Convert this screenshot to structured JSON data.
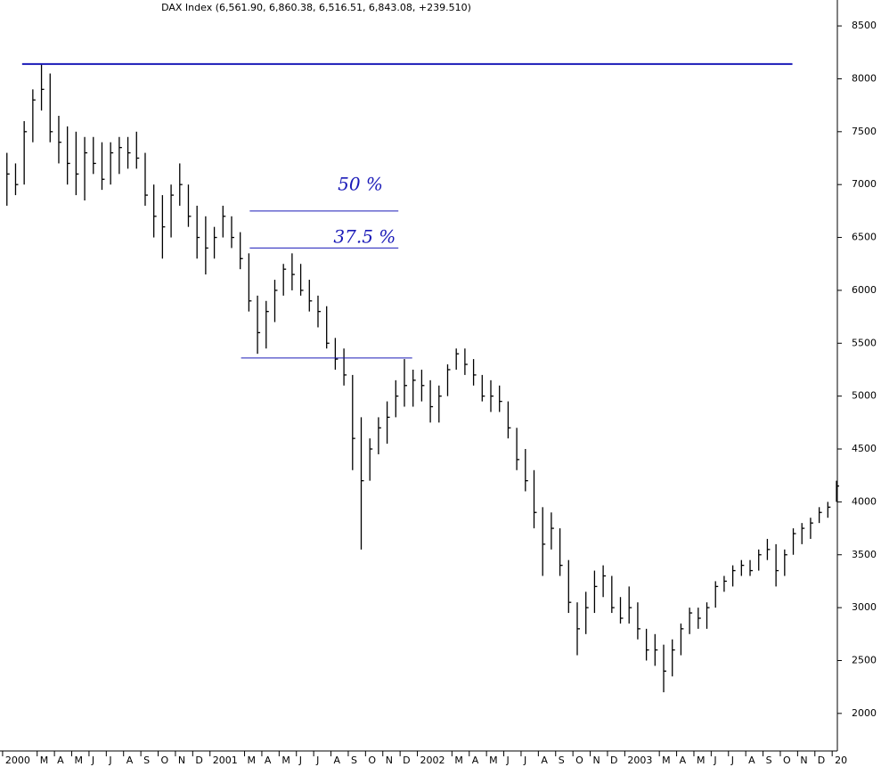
{
  "chart_data": {
    "type": "ohlc",
    "title": "DAX Index (6,561.90, 6,860.38, 6,516.51, 6,843.08, +239.510)",
    "color": "#000000",
    "x": [
      0.25,
      0.75,
      1.25,
      1.75,
      2.25,
      2.75,
      3.25,
      3.75,
      4.25,
      4.75,
      5.25,
      5.75,
      6.25,
      6.75,
      7.25,
      7.75,
      8.25,
      8.75,
      9.25,
      9.75,
      10.25,
      10.75,
      11.25,
      11.75,
      12.25,
      12.75,
      13.25,
      13.75,
      14.25,
      14.75,
      15.25,
      15.75,
      16.25,
      16.75,
      17.25,
      17.75,
      18.25,
      18.75,
      19.25,
      19.75,
      20.25,
      20.75,
      21.25,
      21.75,
      22.25,
      22.75,
      23.25,
      23.75,
      24.25,
      24.75,
      25.25,
      25.75,
      26.25,
      26.75,
      27.25,
      27.75,
      28.25,
      28.75,
      29.25,
      29.75,
      30.25,
      30.75,
      31.25,
      31.75,
      32.25,
      32.75,
      33.25,
      33.75,
      34.25,
      34.75,
      35.25,
      35.75,
      36.25,
      36.75,
      37.25,
      37.75,
      38.25,
      38.75,
      39.25,
      39.75,
      40.25,
      40.75,
      41.25,
      41.75,
      42.25,
      42.75,
      43.25,
      43.75,
      44.25,
      44.75,
      45.25,
      45.75,
      46.25,
      46.75,
      47.25,
      47.75,
      48.25
    ],
    "high": [
      7300,
      7200,
      7600,
      7900,
      8140,
      8050,
      7650,
      7550,
      7500,
      7450,
      7450,
      7400,
      7400,
      7450,
      7450,
      7500,
      7300,
      7000,
      6900,
      7000,
      7200,
      7000,
      6800,
      6700,
      6600,
      6800,
      6700,
      6550,
      6350,
      5950,
      5900,
      6100,
      6250,
      6350,
      6250,
      6100,
      5950,
      5850,
      5550,
      5450,
      5200,
      4800,
      4600,
      4800,
      4950,
      5150,
      5350,
      5250,
      5250,
      5150,
      5100,
      5300,
      5450,
      5450,
      5350,
      5200,
      5150,
      5100,
      4950,
      4700,
      4500,
      4300,
      3950,
      3900,
      3750,
      3450,
      3050,
      3150,
      3350,
      3400,
      3300,
      3100,
      3200,
      3050,
      2800,
      2750,
      2650,
      2700,
      2850,
      3000,
      3000,
      3050,
      3250,
      3300,
      3400,
      3450,
      3450,
      3550,
      3650,
      3600,
      3550,
      3750,
      3800,
      3850,
      3950,
      4000,
      4200
    ],
    "low": [
      6800,
      6900,
      7000,
      7400,
      7700,
      7400,
      7200,
      7000,
      6900,
      6850,
      7100,
      6950,
      7000,
      7100,
      7150,
      7150,
      6800,
      6500,
      6300,
      6500,
      6800,
      6600,
      6300,
      6150,
      6300,
      6500,
      6400,
      6200,
      5800,
      5400,
      5450,
      5700,
      5950,
      6000,
      5950,
      5800,
      5650,
      5450,
      5250,
      5100,
      4300,
      3550,
      4200,
      4450,
      4550,
      4800,
      4900,
      4900,
      4950,
      4750,
      4750,
      5000,
      5250,
      5200,
      5100,
      4950,
      4850,
      4850,
      4600,
      4300,
      4100,
      3750,
      3300,
      3550,
      3300,
      2950,
      2550,
      2750,
      2950,
      3100,
      2950,
      2850,
      2850,
      2700,
      2500,
      2450,
      2200,
      2350,
      2550,
      2750,
      2800,
      2800,
      3000,
      3150,
      3200,
      3300,
      3300,
      3350,
      3450,
      3200,
      3300,
      3500,
      3600,
      3650,
      3800,
      3850,
      4000
    ],
    "close": [
      7100,
      7000,
      7500,
      7800,
      7900,
      7500,
      7400,
      7200,
      7100,
      7300,
      7200,
      7050,
      7300,
      7350,
      7300,
      7250,
      6900,
      6700,
      6600,
      6900,
      7000,
      6700,
      6500,
      6400,
      6500,
      6700,
      6500,
      6300,
      5900,
      5600,
      5800,
      6000,
      6200,
      6150,
      6000,
      5900,
      5800,
      5500,
      5350,
      5200,
      4600,
      4200,
      4500,
      4700,
      4800,
      5000,
      5100,
      5150,
      5100,
      4900,
      5000,
      5250,
      5400,
      5300,
      5200,
      5000,
      5000,
      4950,
      4700,
      4400,
      4200,
      3900,
      3600,
      3750,
      3400,
      3050,
      2800,
      3000,
      3200,
      3300,
      3000,
      2900,
      3000,
      2800,
      2600,
      2600,
      2400,
      2600,
      2800,
      2950,
      2900,
      3000,
      3200,
      3250,
      3350,
      3400,
      3350,
      3500,
      3550,
      3350,
      3500,
      3700,
      3750,
      3800,
      3900,
      3950,
      4150
    ],
    "levels": [
      {
        "value": 8140,
        "from": 1.13,
        "to": 45.7
      },
      {
        "value": 6750,
        "from": 14.3,
        "to": 22.9
      },
      {
        "value": 6400,
        "from": 14.3,
        "to": 22.9
      },
      {
        "value": 5360,
        "from": 13.8,
        "to": 23.7
      }
    ],
    "level_color": "#1a1ab8",
    "annotations": [
      {
        "text": "50 %",
        "x": 20.7,
        "y": 6995
      },
      {
        "text": "37.5 %",
        "x": 20.95,
        "y": 6497
      }
    ],
    "xlim": [
      -0.15,
      48.3
    ],
    "ylim": [
      1645,
      8745
    ],
    "yticks": [
      2000,
      2500,
      3000,
      3500,
      4000,
      4500,
      5000,
      5500,
      6000,
      6500,
      7000,
      7500,
      8000,
      8500
    ],
    "xticks": [
      {
        "value": 0,
        "label": "2000"
      },
      {
        "value": 2,
        "label": "M"
      },
      {
        "value": 3,
        "label": "A"
      },
      {
        "value": 4,
        "label": "M"
      },
      {
        "value": 5,
        "label": "J"
      },
      {
        "value": 6,
        "label": "J"
      },
      {
        "value": 7,
        "label": "A"
      },
      {
        "value": 8,
        "label": "S"
      },
      {
        "value": 9,
        "label": "O"
      },
      {
        "value": 10,
        "label": "N"
      },
      {
        "value": 11,
        "label": "D"
      },
      {
        "value": 12,
        "label": "2001"
      },
      {
        "value": 14,
        "label": "M"
      },
      {
        "value": 15,
        "label": "A"
      },
      {
        "value": 16,
        "label": "M"
      },
      {
        "value": 17,
        "label": "J"
      },
      {
        "value": 18,
        "label": "J"
      },
      {
        "value": 19,
        "label": "A"
      },
      {
        "value": 20,
        "label": "S"
      },
      {
        "value": 21,
        "label": "O"
      },
      {
        "value": 22,
        "label": "N"
      },
      {
        "value": 23,
        "label": "D"
      },
      {
        "value": 24,
        "label": "2002"
      },
      {
        "value": 26,
        "label": "M"
      },
      {
        "value": 27,
        "label": "A"
      },
      {
        "value": 28,
        "label": "M"
      },
      {
        "value": 29,
        "label": "J"
      },
      {
        "value": 30,
        "label": "J"
      },
      {
        "value": 31,
        "label": "A"
      },
      {
        "value": 32,
        "label": "S"
      },
      {
        "value": 33,
        "label": "O"
      },
      {
        "value": 34,
        "label": "N"
      },
      {
        "value": 35,
        "label": "D"
      },
      {
        "value": 36,
        "label": "2003"
      },
      {
        "value": 38,
        "label": "M"
      },
      {
        "value": 39,
        "label": "A"
      },
      {
        "value": 40,
        "label": "M"
      },
      {
        "value": 41,
        "label": "J"
      },
      {
        "value": 42,
        "label": "J"
      },
      {
        "value": 43,
        "label": "A"
      },
      {
        "value": 44,
        "label": "S"
      },
      {
        "value": 45,
        "label": "O"
      },
      {
        "value": 46,
        "label": "N"
      },
      {
        "value": 47,
        "label": "D"
      },
      {
        "value": 48,
        "label": "20"
      }
    ]
  }
}
